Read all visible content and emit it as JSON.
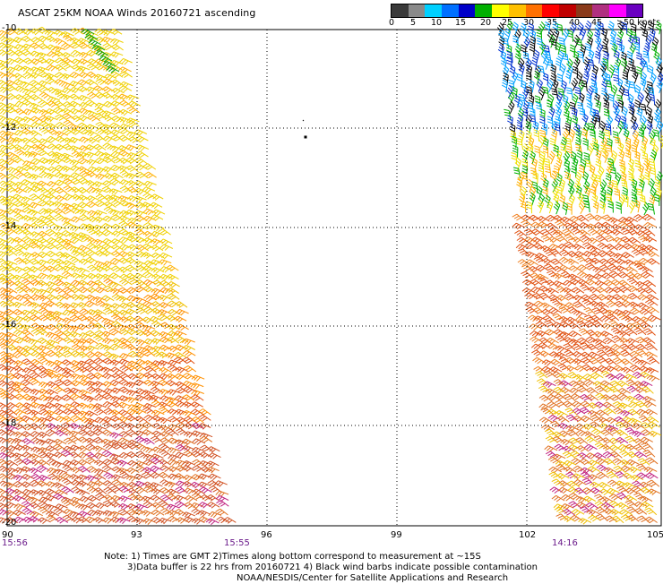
{
  "title": "ASCAT 25KM NOAA Winds 20160721 ascending",
  "colorbar": {
    "colors": [
      "#3a3a3a",
      "#8a8a8a",
      "#00d0ff",
      "#0070ff",
      "#0000c8",
      "#00b000",
      "#ffff00",
      "#ffc000",
      "#ff7000",
      "#ff0000",
      "#c00000",
      "#8a3a1a",
      "#b03080",
      "#ff00ff",
      "#6a00c0"
    ],
    "ticks": [
      "0",
      "5",
      "10",
      "15",
      "20",
      "25",
      "30",
      "35",
      "40",
      "45",
      ">50 knots"
    ]
  },
  "axes": {
    "lat_labels": [
      "-10",
      "-12",
      "-14",
      "-16",
      "-18",
      "-20"
    ],
    "lon_labels": [
      "90",
      "93",
      "96",
      "99",
      "102",
      "105"
    ]
  },
  "pass_times": [
    "15:56",
    "15:55",
    "14:16"
  ],
  "notes": [
    "Note: 1) Times are GMT 2)Times along bottom correspond to measurement at ~15S",
    "3)Data buffer is 22 hrs from 20160721 4) Black wind barbs indicate possible contamination",
    "NOAA/NESDIS/Center for Satellite Applications and Research"
  ]
}
